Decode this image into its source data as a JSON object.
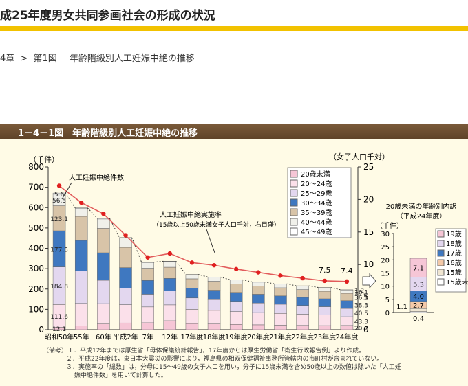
{
  "header": {
    "title": "成25年度男女共同参画社会の形成の状況"
  },
  "breadcrumb": {
    "chapter": "4章",
    "sep": ">",
    "figure": "第1図",
    "title": "年齢階級別人工妊娠中絶の推移"
  },
  "figure": {
    "title": "1－4－1図　年齢階級別人工妊娠中絶の推移"
  },
  "chart_data": [
    {
      "type": "bar",
      "stacked": true,
      "ylabel": "（千件）",
      "y2label": "（女子人口千対）",
      "ylim": [
        0,
        800
      ],
      "y2lim": [
        0,
        25
      ],
      "yticks": [
        "0",
        "100",
        "200",
        "300",
        "400",
        "500",
        "600",
        "700",
        "800"
      ],
      "y2ticks": [
        "0",
        "5",
        "10",
        "15",
        "20",
        "25"
      ],
      "categories": [
        "昭和50年",
        "55年",
        "60年",
        "平成2年",
        "7年",
        "12年",
        "17年度",
        "18年度",
        "19年度",
        "20年度",
        "21年度",
        "22年度",
        "23年度",
        "24年度"
      ],
      "stack_order": [
        "20歳未満",
        "20～24歳",
        "25～29歳",
        "30～34歳",
        "35～39歳",
        "40～44歳",
        "45～49歳"
      ],
      "legend": [
        "20歳未満",
        "20～24歳",
        "25～29歳",
        "30～34歳",
        "35～39歳",
        "40～44歳",
        "45～49歳"
      ],
      "series": [
        {
          "name": "20歳未満",
          "color": "#f6c6d6",
          "values": [
            12.1,
            19.0,
            28.0,
            33.0,
            34.0,
            44.0,
            30.0,
            28.0,
            26.0,
            24.0,
            22.0,
            21.0,
            20.0,
            20.7
          ]
        },
        {
          "name": "20～24歳",
          "color": "#fbe0ea",
          "values": [
            111.6,
            110.0,
            100.0,
            90.0,
            78.0,
            78.0,
            70.0,
            67.0,
            63.0,
            60.0,
            58.0,
            55.0,
            52.0,
            43.3
          ]
        },
        {
          "name": "25～29歳",
          "color": "#e3d7ef",
          "values": [
            184.8,
            160.0,
            115.0,
            82.0,
            62.0,
            68.0,
            56.0,
            53.0,
            50.0,
            47.0,
            45.0,
            43.0,
            41.0,
            40.5
          ]
        },
        {
          "name": "30～34歳",
          "color": "#3f78c0",
          "values": [
            177.5,
            150.0,
            135.0,
            100.0,
            68.0,
            62.0,
            48.0,
            46.0,
            44.0,
            43.0,
            41.0,
            40.0,
            39.0,
            38.3
          ]
        },
        {
          "name": "35～39歳",
          "color": "#d8c4a8",
          "values": [
            123.1,
            118.0,
            120.0,
            100.0,
            60.0,
            55.0,
            46.0,
            44.0,
            42.0,
            41.0,
            40.0,
            38.0,
            37.0,
            36.1
          ]
        },
        {
          "name": "40～44歳",
          "color": "#f0f0ea",
          "values": [
            56.5,
            38.0,
            46.0,
            45.0,
            28.0,
            28.0,
            20.0,
            19.5,
            19.0,
            18.5,
            18.0,
            17.5,
            17.0,
            16.1
          ]
        },
        {
          "name": "45～49歳",
          "color": "#ffffff",
          "values": [
            5.6,
            3.6,
            3.5,
            3.0,
            2.0,
            1.5,
            1.3,
            1.3,
            1.3,
            1.3,
            1.3,
            1.2,
            1.2,
            1.2
          ]
        }
      ],
      "total_label": "人工妊娠中絶件数",
      "rate": {
        "name": "人工妊娠中絶実施率",
        "note": "（15歳以上50歳未満女子人口千対，右目盛）",
        "values": [
          22.1,
          19.5,
          17.8,
          14.5,
          11.1,
          11.7,
          10.3,
          9.9,
          9.3,
          8.8,
          8.3,
          7.9,
          7.5,
          7.4
        ]
      },
      "labels": {
        "first_bar": [
          "12.1",
          "111.6",
          "184.8",
          "177.5",
          "123.1",
          "56.5",
          "5.6"
        ],
        "last_bar": [
          "20.7",
          "43.3",
          "40.5",
          "38.3",
          "36.1",
          "16.1",
          "1.2"
        ],
        "rate_23": "7.5",
        "rate_24": "7.4"
      }
    },
    {
      "type": "bar",
      "stacked": true,
      "title": "20歳未満の年齢別内訳",
      "subtitle": "（平成24年度）",
      "ylabel": "（千件）",
      "ylim": [
        0,
        30
      ],
      "yticks": [
        "0",
        "5",
        "10",
        "15",
        "20",
        "25",
        "30"
      ],
      "stack_order": [
        "15歳未満",
        "15歳",
        "16歳",
        "17歳",
        "18歳",
        "19歳"
      ],
      "legend": [
        "19歳",
        "18歳",
        "17歳",
        "16歳",
        "15歳",
        "15歳未満"
      ],
      "legend_colors": [
        "#f6c6d6",
        "#e3d7ef",
        "#3f78c0",
        "#f4c9a8",
        "#f0e6d2",
        "#ffffff"
      ],
      "series": [
        {
          "name": "15歳未満",
          "color": "#ffffff",
          "value": 0.4
        },
        {
          "name": "15歳",
          "color": "#f0e6d2",
          "value": 1.1
        },
        {
          "name": "16歳",
          "color": "#f4c9a8",
          "value": 2.7
        },
        {
          "name": "17歳",
          "color": "#3f78c0",
          "value": 4.0
        },
        {
          "name": "18歳",
          "color": "#e3d7ef",
          "value": 5.3
        },
        {
          "name": "19歳",
          "color": "#f6c6d6",
          "value": 7.1
        }
      ],
      "labels": [
        "0.4",
        "1.1",
        "2.7",
        "4.0",
        "5.3",
        "7.1"
      ]
    }
  ],
  "notes": [
    "（備考）１．平成12年までは厚生省「母体保護統計報告」，17年度からは厚生労働省「衛生行政報告例」より作成。",
    "２．平成22年度は，東日本大震災の影響により，福島県の相双保健福祉事務所管轄内の市町村が含まれていない。",
    "３．実施率の「総数」は，分母に15～49歳の女子人口を用い，分子に15歳未満を含め50歳以上の数値は除いた「人工妊",
    "娠中絶件数」を用いて計算した。"
  ]
}
